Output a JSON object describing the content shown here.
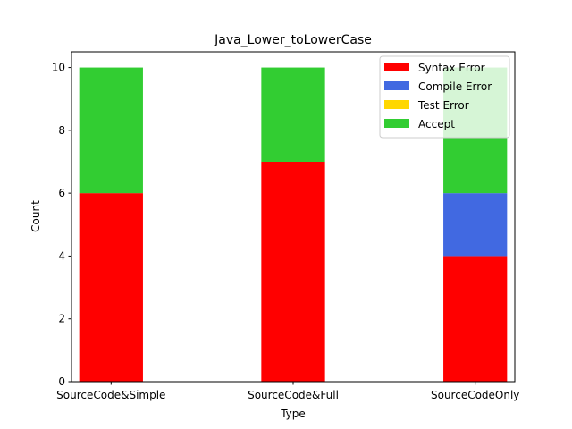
{
  "chart_data": {
    "type": "bar",
    "stacked": true,
    "title": "Java_Lower_toLowerCase",
    "xlabel": "Type",
    "ylabel": "Count",
    "categories": [
      "SourceCode&Simple",
      "SourceCode&Full",
      "SourceCodeOnly"
    ],
    "series": [
      {
        "name": "Syntax Error",
        "color": "#ff0000",
        "values": [
          6,
          7,
          4
        ]
      },
      {
        "name": "Compile Error",
        "color": "#4169e1",
        "values": [
          0,
          0,
          2
        ]
      },
      {
        "name": "Test Error",
        "color": "#ffd700",
        "values": [
          0,
          0,
          0
        ]
      },
      {
        "name": "Accept",
        "color": "#32cd32",
        "values": [
          4,
          3,
          4
        ]
      }
    ],
    "ylim": [
      0,
      10.5
    ],
    "yticks": [
      0,
      2,
      4,
      6,
      8,
      10
    ],
    "grid": false,
    "legend_position": "top-right"
  }
}
